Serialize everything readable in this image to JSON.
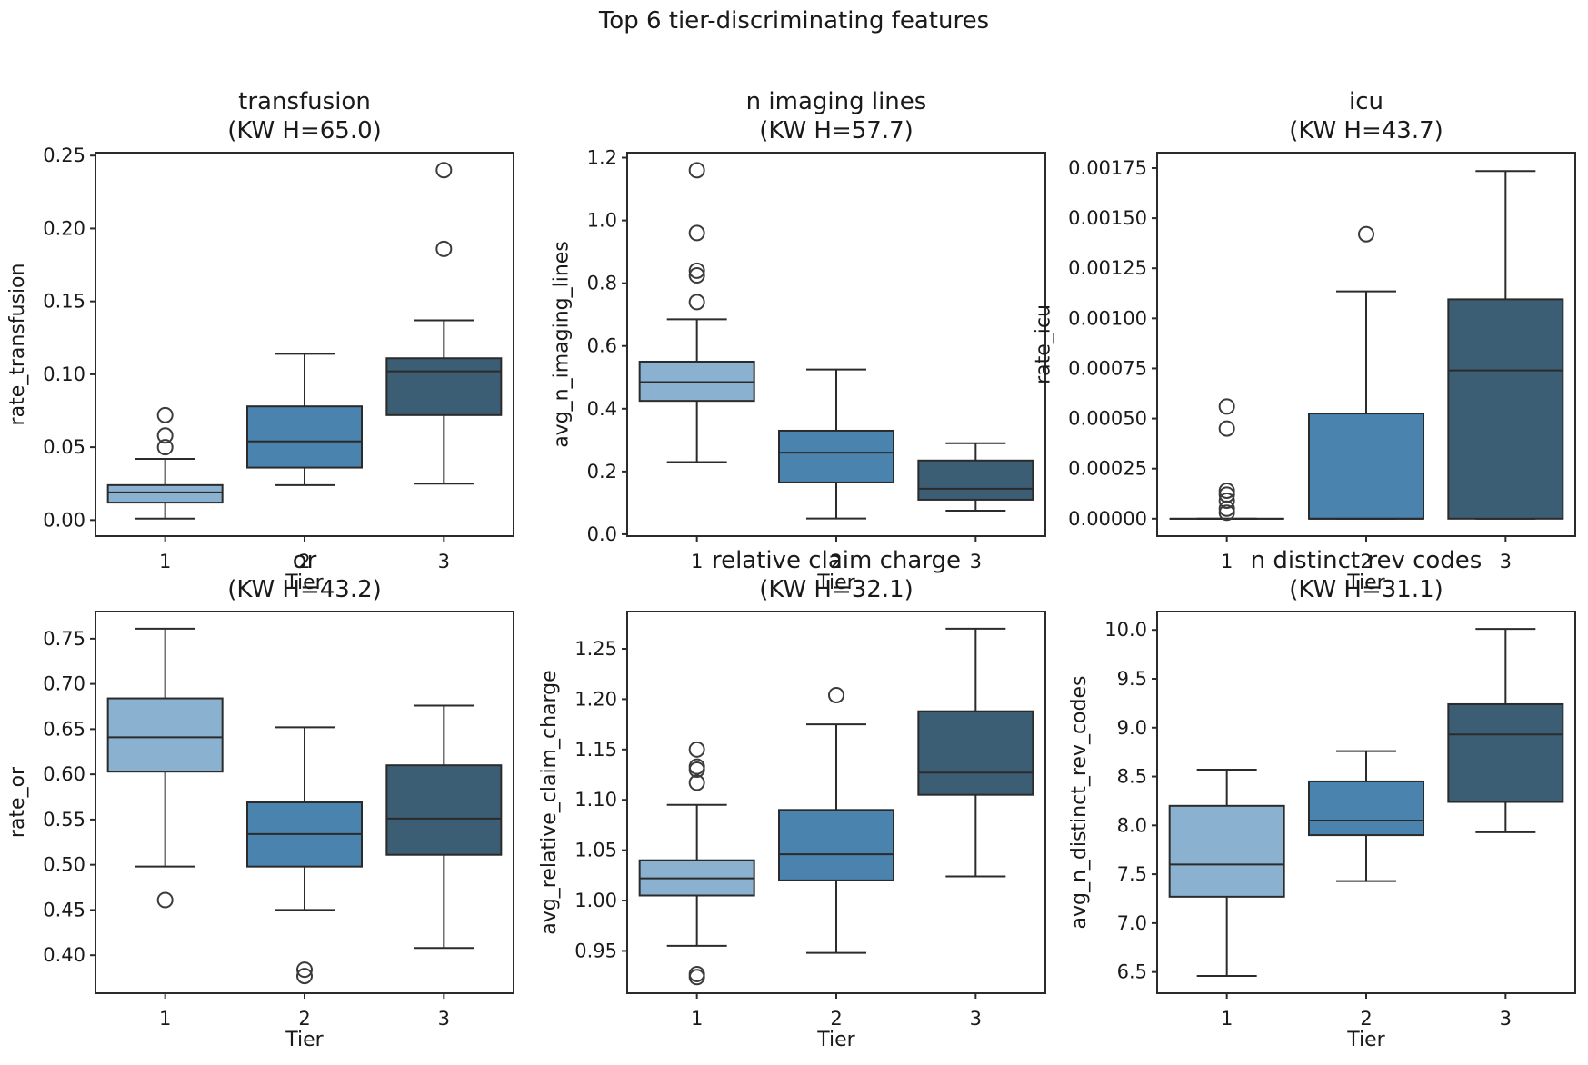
{
  "figure": {
    "title": "Top 6 tier-discriminating features",
    "background": "#ffffff",
    "line_color": "#2b2b2b",
    "text_color": "#1a1a1a",
    "outlier_color": "#3b3b3b",
    "tier_colors": [
      "#8ab2d0",
      "#4a83ae",
      "#3c5e74"
    ]
  },
  "chart_data": [
    {
      "type": "box",
      "title": "transfusion",
      "subtitle": "(KW H=65.0)",
      "kw_h": 65.0,
      "xlabel": "Tier",
      "ylabel": "rate_transfusion",
      "categories": [
        "1",
        "2",
        "3"
      ],
      "ylim": [
        -0.011,
        0.252
      ],
      "ytick_values": [
        0.0,
        0.05,
        0.1,
        0.15,
        0.2,
        0.25
      ],
      "ytick_labels": [
        "0.00",
        "0.05",
        "0.10",
        "0.15",
        "0.20",
        "0.25"
      ],
      "grid": false,
      "boxes": [
        {
          "tier": "1",
          "whislo": 0.001,
          "q1": 0.012,
          "med": 0.019,
          "q3": 0.024,
          "whishi": 0.042,
          "outliers": [
            0.05,
            0.058,
            0.072
          ]
        },
        {
          "tier": "2",
          "whislo": 0.024,
          "q1": 0.036,
          "med": 0.054,
          "q3": 0.078,
          "whishi": 0.114,
          "outliers": []
        },
        {
          "tier": "3",
          "whislo": 0.025,
          "q1": 0.072,
          "med": 0.102,
          "q3": 0.111,
          "whishi": 0.137,
          "outliers": [
            0.186,
            0.24
          ]
        }
      ]
    },
    {
      "type": "box",
      "title": "n imaging lines",
      "subtitle": "(KW H=57.7)",
      "kw_h": 57.7,
      "xlabel": "Tier",
      "ylabel": "avg_n_imaging_lines",
      "categories": [
        "1",
        "2",
        "3"
      ],
      "ylim": [
        -0.006,
        1.216
      ],
      "ytick_values": [
        0.0,
        0.2,
        0.4,
        0.6,
        0.8,
        1.0,
        1.2
      ],
      "ytick_labels": [
        "0.0",
        "0.2",
        "0.4",
        "0.6",
        "0.8",
        "1.0",
        "1.2"
      ],
      "grid": false,
      "boxes": [
        {
          "tier": "1",
          "whislo": 0.23,
          "q1": 0.425,
          "med": 0.485,
          "q3": 0.55,
          "whishi": 0.685,
          "outliers": [
            0.74,
            0.825,
            0.84,
            0.96,
            1.16
          ]
        },
        {
          "tier": "2",
          "whislo": 0.05,
          "q1": 0.165,
          "med": 0.26,
          "q3": 0.33,
          "whishi": 0.525,
          "outliers": []
        },
        {
          "tier": "3",
          "whislo": 0.075,
          "q1": 0.11,
          "med": 0.145,
          "q3": 0.235,
          "whishi": 0.29,
          "outliers": []
        }
      ]
    },
    {
      "type": "box",
      "title": "icu",
      "subtitle": "(KW H=43.7)",
      "kw_h": 43.7,
      "xlabel": "Tier",
      "ylabel": "rate_icu",
      "categories": [
        "1",
        "2",
        "3"
      ],
      "ylim": [
        -8.7e-05,
        0.001827
      ],
      "ytick_values": [
        0.0,
        0.00025,
        0.0005,
        0.00075,
        0.001,
        0.00125,
        0.0015,
        0.00175
      ],
      "ytick_labels": [
        "0.00000",
        "0.00025",
        "0.00050",
        "0.00075",
        "0.00100",
        "0.00125",
        "0.00150",
        "0.00175"
      ],
      "grid": false,
      "boxes": [
        {
          "tier": "1",
          "whislo": 0.0,
          "q1": 0.0,
          "med": 0.0,
          "q3": 0.0,
          "whishi": 0.0,
          "outliers": [
            3e-05,
            5e-05,
            9e-05,
            0.00012,
            0.00014,
            0.00045,
            0.00056
          ]
        },
        {
          "tier": "2",
          "whislo": 0.0,
          "q1": 0.0,
          "med": 0.0,
          "q3": 0.000525,
          "whishi": 0.001135,
          "outliers": [
            0.00142
          ]
        },
        {
          "tier": "3",
          "whislo": 0.0,
          "q1": 0.0,
          "med": 0.00074,
          "q3": 0.001095,
          "whishi": 0.001735,
          "outliers": []
        }
      ]
    },
    {
      "type": "box",
      "title": "or",
      "subtitle": "(KW H=43.2)",
      "kw_h": 43.2,
      "xlabel": "Tier",
      "ylabel": "rate_or",
      "categories": [
        "1",
        "2",
        "3"
      ],
      "ylim": [
        0.358,
        0.78
      ],
      "ytick_values": [
        0.4,
        0.45,
        0.5,
        0.55,
        0.6,
        0.65,
        0.7,
        0.75
      ],
      "ytick_labels": [
        "0.40",
        "0.45",
        "0.50",
        "0.55",
        "0.60",
        "0.65",
        "0.70",
        "0.75"
      ],
      "grid": false,
      "boxes": [
        {
          "tier": "1",
          "whislo": 0.498,
          "q1": 0.603,
          "med": 0.641,
          "q3": 0.684,
          "whishi": 0.761,
          "outliers": [
            0.461
          ]
        },
        {
          "tier": "2",
          "whislo": 0.45,
          "q1": 0.498,
          "med": 0.534,
          "q3": 0.569,
          "whishi": 0.652,
          "outliers": [
            0.377,
            0.384
          ]
        },
        {
          "tier": "3",
          "whislo": 0.408,
          "q1": 0.511,
          "med": 0.551,
          "q3": 0.61,
          "whishi": 0.676,
          "outliers": []
        }
      ]
    },
    {
      "type": "box",
      "title": "relative claim charge",
      "subtitle": "(KW H=32.1)",
      "kw_h": 32.1,
      "xlabel": "Tier",
      "ylabel": "avg_relative_claim_charge",
      "categories": [
        "1",
        "2",
        "3"
      ],
      "ylim": [
        0.908,
        1.287
      ],
      "ytick_values": [
        0.95,
        1.0,
        1.05,
        1.1,
        1.15,
        1.2,
        1.25
      ],
      "ytick_labels": [
        "0.95",
        "1.00",
        "1.05",
        "1.10",
        "1.15",
        "1.20",
        "1.25"
      ],
      "grid": false,
      "boxes": [
        {
          "tier": "1",
          "whislo": 0.955,
          "q1": 1.005,
          "med": 1.022,
          "q3": 1.04,
          "whishi": 1.095,
          "outliers": [
            0.924,
            0.927,
            1.117,
            1.13,
            1.133,
            1.15
          ]
        },
        {
          "tier": "2",
          "whislo": 0.948,
          "q1": 1.02,
          "med": 1.046,
          "q3": 1.09,
          "whishi": 1.175,
          "outliers": [
            1.204
          ]
        },
        {
          "tier": "3",
          "whislo": 1.024,
          "q1": 1.105,
          "med": 1.127,
          "q3": 1.188,
          "whishi": 1.27,
          "outliers": []
        }
      ]
    },
    {
      "type": "box",
      "title": "n distinct rev codes",
      "subtitle": "(KW H=31.1)",
      "kw_h": 31.1,
      "xlabel": "Tier",
      "ylabel": "avg_n_distinct_rev_codes",
      "categories": [
        "1",
        "2",
        "3"
      ],
      "ylim": [
        6.283,
        10.188
      ],
      "ytick_values": [
        6.5,
        7.0,
        7.5,
        8.0,
        8.5,
        9.0,
        9.5,
        10.0
      ],
      "ytick_labels": [
        "6.5",
        "7.0",
        "7.5",
        "8.0",
        "8.5",
        "9.0",
        "9.5",
        "10.0"
      ],
      "grid": false,
      "boxes": [
        {
          "tier": "1",
          "whislo": 6.46,
          "q1": 7.27,
          "med": 7.6,
          "q3": 8.2,
          "whishi": 8.57,
          "outliers": []
        },
        {
          "tier": "2",
          "whislo": 7.43,
          "q1": 7.9,
          "med": 8.05,
          "q3": 8.45,
          "whishi": 8.76,
          "outliers": []
        },
        {
          "tier": "3",
          "whislo": 7.93,
          "q1": 8.24,
          "med": 8.93,
          "q3": 9.24,
          "whishi": 10.01,
          "outliers": []
        }
      ]
    }
  ]
}
